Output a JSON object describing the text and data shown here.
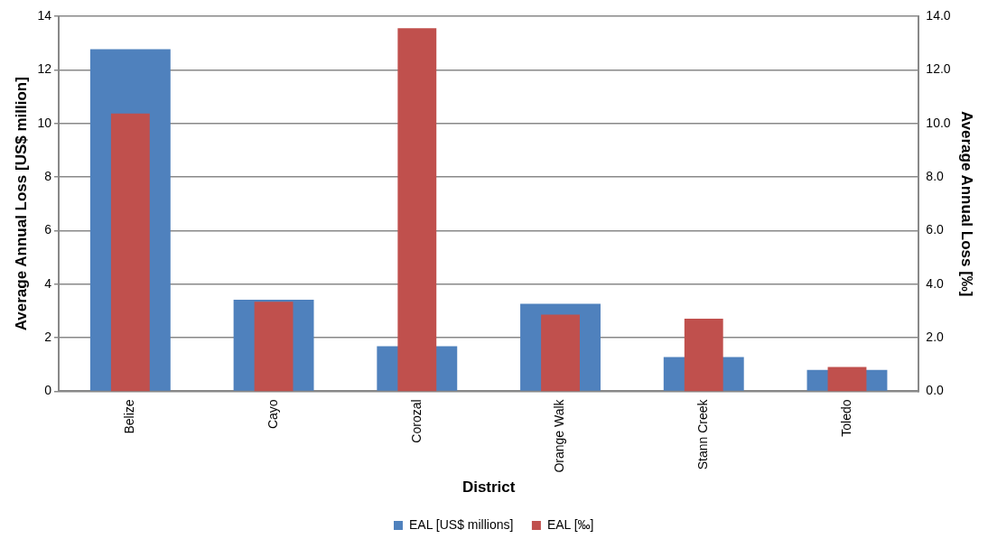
{
  "chart_data": {
    "type": "bar",
    "xlabel": "District",
    "ylabel": "Average Annual Loss [US$ million]",
    "y2label": "Average Annual Loss [‰]",
    "categories": [
      "Belize",
      "Cayo",
      "Corozal",
      "Orange Walk",
      "Stann Creek",
      "Toledo"
    ],
    "series": [
      {
        "name": "EAL [US$ millions]",
        "color": "#4f81bd",
        "values": [
          12.77,
          3.42,
          1.68,
          3.27,
          1.28,
          0.8
        ]
      },
      {
        "name": "EAL [‰]",
        "color": "#c0504d",
        "axis": "y2",
        "values": [
          10.37,
          3.34,
          13.55,
          2.86,
          2.71,
          0.91
        ]
      }
    ],
    "ylim": [
      0,
      14
    ],
    "yticks": [
      0,
      2,
      4,
      6,
      8,
      10,
      12,
      14
    ],
    "y2lim": [
      0,
      14
    ],
    "y2ticks": [
      {
        "value": 0,
        "label": "0.0"
      },
      {
        "value": 2,
        "label": "2.0"
      },
      {
        "value": 4,
        "label": "4.0"
      },
      {
        "value": 6,
        "label": "6.0"
      },
      {
        "value": 8,
        "label": "8.0"
      },
      {
        "value": 10,
        "label": "10.0"
      },
      {
        "value": 12,
        "label": "12.0"
      },
      {
        "value": 14,
        "label": "14.0"
      }
    ],
    "grid": "y",
    "legend": "bottom"
  }
}
